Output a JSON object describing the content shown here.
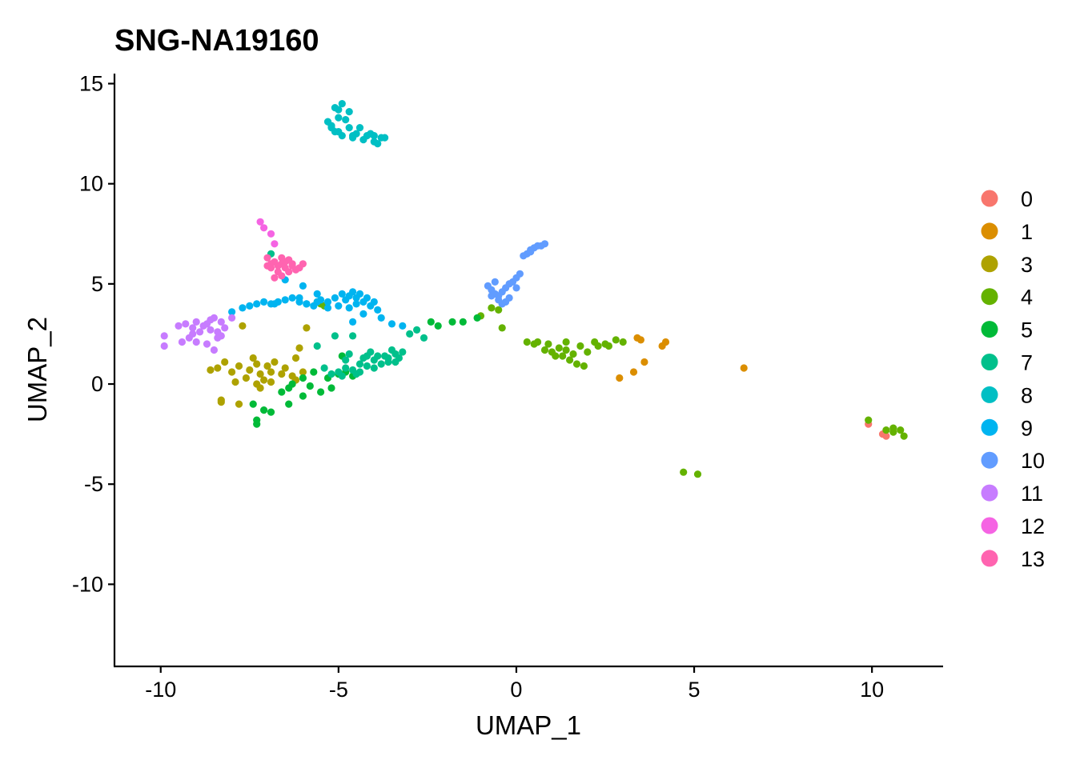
{
  "chart_data": {
    "type": "scatter",
    "title": "SNG-NA19160",
    "xlabel": "UMAP_1",
    "ylabel": "UMAP_2",
    "xlim": [
      -11.3,
      12.0
    ],
    "ylim": [
      -14.1,
      15.5
    ],
    "xticks": [
      -10,
      -5,
      0,
      5,
      10
    ],
    "yticks": [
      15,
      10,
      5,
      0,
      -5,
      -10
    ],
    "xtick_labels": [
      "-10",
      "-5",
      "0",
      "5",
      "10"
    ],
    "ytick_labels": [
      "15",
      "10",
      "5",
      "0",
      "-5",
      "-10"
    ],
    "grid": false,
    "legend_position": "right",
    "series": [
      {
        "name": "0",
        "color": "#F8766D",
        "points": [
          [
            9.9,
            -2.0
          ],
          [
            10.4,
            -2.6
          ],
          [
            10.3,
            -2.5
          ]
        ]
      },
      {
        "name": "1",
        "color": "#DB8E00",
        "points": [
          [
            3.4,
            2.3
          ],
          [
            3.5,
            2.2
          ],
          [
            4.2,
            2.1
          ],
          [
            4.1,
            1.9
          ],
          [
            3.6,
            1.1
          ],
          [
            3.3,
            0.6
          ],
          [
            2.9,
            0.3
          ],
          [
            6.4,
            0.8
          ]
        ]
      },
      {
        "name": "3",
        "color": "#AEA200",
        "points": [
          [
            -7.5,
            0.7
          ],
          [
            -7.3,
            1.0
          ],
          [
            -7.2,
            0.5
          ],
          [
            -7.0,
            0.9
          ],
          [
            -6.9,
            0.6
          ],
          [
            -7.6,
            0.3
          ],
          [
            -7.4,
            1.3
          ],
          [
            -7.1,
            0.2
          ],
          [
            -6.8,
            1.1
          ],
          [
            -6.6,
            0.5
          ],
          [
            -6.5,
            0.8
          ],
          [
            -6.3,
            0.4
          ],
          [
            -7.8,
            0.9
          ],
          [
            -8.0,
            0.6
          ],
          [
            -8.2,
            1.1
          ],
          [
            -8.4,
            0.8
          ],
          [
            -8.6,
            0.7
          ],
          [
            -8.3,
            -0.8
          ],
          [
            -8.3,
            -0.9
          ],
          [
            -7.8,
            -1.0
          ],
          [
            -7.2,
            -0.2
          ],
          [
            -6.9,
            0.1
          ],
          [
            -6.2,
            0.2
          ],
          [
            -6.0,
            0.6
          ],
          [
            -6.1,
            1.8
          ],
          [
            -6.2,
            1.3
          ],
          [
            -5.9,
            2.8
          ],
          [
            -7.7,
            2.9
          ],
          [
            -7.9,
            0.1
          ],
          [
            -7.3,
            0.0
          ]
        ]
      },
      {
        "name": "4",
        "color": "#64B200",
        "points": [
          [
            1.2,
            1.8
          ],
          [
            1.4,
            1.7
          ],
          [
            1.6,
            1.5
          ],
          [
            1.8,
            1.9
          ],
          [
            1.5,
            1.2
          ],
          [
            1.3,
            1.4
          ],
          [
            1.7,
            1.0
          ],
          [
            2.0,
            1.6
          ],
          [
            2.2,
            2.1
          ],
          [
            2.5,
            2.0
          ],
          [
            2.8,
            2.2
          ],
          [
            2.6,
            1.9
          ],
          [
            3.0,
            2.1
          ],
          [
            0.9,
            2.0
          ],
          [
            0.6,
            2.1
          ],
          [
            0.3,
            2.1
          ],
          [
            -0.5,
            3.7
          ],
          [
            -0.4,
            2.8
          ],
          [
            -0.7,
            3.8
          ],
          [
            -1.0,
            3.4
          ],
          [
            -5.6,
            4.1
          ],
          [
            -5.4,
            3.9
          ],
          [
            -5.5,
            4.0
          ],
          [
            9.9,
            -1.8
          ],
          [
            10.4,
            -2.3
          ],
          [
            10.6,
            -2.2
          ],
          [
            10.8,
            -2.3
          ],
          [
            10.9,
            -2.6
          ],
          [
            10.6,
            -2.4
          ],
          [
            4.7,
            -4.4
          ],
          [
            5.1,
            -4.5
          ],
          [
            1.0,
            1.6
          ],
          [
            1.9,
            0.9
          ],
          [
            2.3,
            1.9
          ],
          [
            1.1,
            1.4
          ],
          [
            1.4,
            2.1
          ],
          [
            0.5,
            2.0
          ],
          [
            0.8,
            1.7
          ]
        ]
      },
      {
        "name": "5",
        "color": "#00BA38",
        "points": [
          [
            -7.3,
            -1.8
          ],
          [
            -7.3,
            -2.0
          ],
          [
            -7.1,
            -1.3
          ],
          [
            -7.4,
            -1.0
          ],
          [
            -6.9,
            -1.4
          ],
          [
            -6.4,
            -1.0
          ],
          [
            -6.0,
            -0.6
          ],
          [
            -5.8,
            -0.1
          ],
          [
            -5.5,
            -0.4
          ],
          [
            -5.2,
            -0.2
          ],
          [
            -5.0,
            0.5
          ],
          [
            -4.8,
            0.6
          ],
          [
            -6.3,
            0.0
          ],
          [
            -6.0,
            0.3
          ],
          [
            -6.6,
            -0.4
          ],
          [
            -5.7,
            0.6
          ],
          [
            -4.9,
            1.4
          ],
          [
            -4.6,
            0.4
          ],
          [
            -1.5,
            3.1
          ],
          [
            -1.8,
            3.1
          ],
          [
            -2.2,
            2.9
          ],
          [
            -2.4,
            3.1
          ],
          [
            -1.1,
            3.3
          ],
          [
            -6.4,
            -0.2
          ],
          [
            -5.3,
            0.3
          ]
        ]
      },
      {
        "name": "7",
        "color": "#00C08B",
        "points": [
          [
            -5.0,
            0.6
          ],
          [
            -4.8,
            0.8
          ],
          [
            -4.6,
            0.7
          ],
          [
            -4.4,
            1.0
          ],
          [
            -4.2,
            0.9
          ],
          [
            -4.0,
            1.2
          ],
          [
            -3.8,
            1.0
          ],
          [
            -3.6,
            1.3
          ],
          [
            -3.4,
            1.5
          ],
          [
            -3.2,
            1.6
          ],
          [
            -3.5,
            1.7
          ],
          [
            -3.7,
            1.4
          ],
          [
            -4.1,
            1.6
          ],
          [
            -4.3,
            1.3
          ],
          [
            -4.7,
            1.5
          ],
          [
            -4.5,
            0.5
          ],
          [
            -4.9,
            0.4
          ],
          [
            -5.2,
            0.5
          ],
          [
            -5.4,
            0.8
          ],
          [
            -5.6,
            1.9
          ],
          [
            -5.1,
            2.4
          ],
          [
            -4.6,
            2.4
          ],
          [
            -3.0,
            2.5
          ],
          [
            -2.6,
            2.3
          ],
          [
            -2.8,
            2.7
          ],
          [
            -3.3,
            1.3
          ],
          [
            -3.9,
            1.4
          ],
          [
            -4.4,
            0.6
          ],
          [
            -4.2,
            1.4
          ],
          [
            -3.6,
            1.1
          ],
          [
            -6.9,
            6.5
          ],
          [
            -4.0,
            0.8
          ],
          [
            -4.8,
            1.2
          ],
          [
            -3.4,
            1.1
          ]
        ]
      },
      {
        "name": "8",
        "color": "#00BFC4",
        "points": [
          [
            -5.1,
            13.8
          ],
          [
            -4.9,
            14.0
          ],
          [
            -5.0,
            13.3
          ],
          [
            -5.2,
            12.9
          ],
          [
            -5.0,
            12.6
          ],
          [
            -4.8,
            13.2
          ],
          [
            -4.7,
            12.8
          ],
          [
            -4.5,
            12.5
          ],
          [
            -4.3,
            12.2
          ],
          [
            -4.1,
            12.5
          ],
          [
            -4.0,
            12.1
          ],
          [
            -3.8,
            12.3
          ],
          [
            -3.9,
            12.0
          ],
          [
            -4.2,
            12.4
          ],
          [
            -4.4,
            12.8
          ],
          [
            -4.6,
            12.3
          ],
          [
            -5.3,
            13.1
          ],
          [
            -5.1,
            12.6
          ],
          [
            -4.9,
            12.4
          ],
          [
            -4.7,
            13.6
          ],
          [
            -3.7,
            12.3
          ],
          [
            -4.0,
            12.4
          ],
          [
            -5.0,
            13.7
          ],
          [
            -4.6,
            12.4
          ],
          [
            -5.2,
            12.8
          ]
        ]
      },
      {
        "name": "9",
        "color": "#00B4F0",
        "points": [
          [
            -6.9,
            4.0
          ],
          [
            -7.1,
            4.1
          ],
          [
            -7.3,
            4.0
          ],
          [
            -7.5,
            3.9
          ],
          [
            -7.7,
            3.8
          ],
          [
            -8.0,
            3.6
          ],
          [
            -6.7,
            4.1
          ],
          [
            -6.5,
            4.2
          ],
          [
            -6.3,
            4.3
          ],
          [
            -6.1,
            4.1
          ],
          [
            -5.9,
            4.0
          ],
          [
            -5.7,
            3.9
          ],
          [
            -5.5,
            4.2
          ],
          [
            -5.3,
            4.1
          ],
          [
            -5.1,
            4.3
          ],
          [
            -4.9,
            4.5
          ],
          [
            -4.7,
            4.4
          ],
          [
            -4.5,
            4.3
          ],
          [
            -4.3,
            4.1
          ],
          [
            -4.1,
            3.9
          ],
          [
            -3.9,
            3.7
          ],
          [
            -3.8,
            3.3
          ],
          [
            -3.5,
            3.0
          ],
          [
            -3.2,
            2.9
          ],
          [
            -4.6,
            4.6
          ],
          [
            -4.8,
            4.2
          ],
          [
            -4.4,
            4.5
          ],
          [
            -4.2,
            4.3
          ],
          [
            -5.0,
            3.9
          ],
          [
            -5.6,
            4.1
          ],
          [
            -6.1,
            4.3
          ],
          [
            -5.9,
            4.0
          ],
          [
            -6.5,
            5.2
          ],
          [
            -6.0,
            4.9
          ],
          [
            -5.6,
            4.5
          ],
          [
            -4.6,
            3.1
          ],
          [
            -4.3,
            3.5
          ],
          [
            -4.0,
            4.1
          ],
          [
            -5.3,
            3.8
          ],
          [
            -4.7,
            3.8
          ],
          [
            -4.5,
            4.0
          ],
          [
            -6.8,
            4.0
          ]
        ]
      },
      {
        "name": "10",
        "color": "#619CFF",
        "points": [
          [
            0.8,
            7.0
          ],
          [
            0.7,
            6.9
          ],
          [
            0.5,
            6.8
          ],
          [
            0.4,
            6.7
          ],
          [
            0.3,
            6.5
          ],
          [
            0.2,
            6.4
          ],
          [
            0.4,
            6.6
          ],
          [
            0.6,
            6.9
          ],
          [
            0.1,
            5.5
          ],
          [
            0.0,
            5.3
          ],
          [
            -0.1,
            5.1
          ],
          [
            -0.2,
            5.0
          ],
          [
            -0.3,
            4.8
          ],
          [
            -0.4,
            4.6
          ],
          [
            -0.5,
            4.4
          ],
          [
            -0.6,
            4.5
          ],
          [
            -0.7,
            4.7
          ],
          [
            -0.8,
            4.9
          ],
          [
            -0.6,
            5.1
          ],
          [
            -0.5,
            4.2
          ],
          [
            -0.2,
            4.3
          ],
          [
            0.0,
            4.8
          ],
          [
            -0.3,
            4.1
          ],
          [
            -0.4,
            4.0
          ],
          [
            -0.7,
            4.4
          ]
        ]
      },
      {
        "name": "11",
        "color": "#C77CFF",
        "points": [
          [
            -9.9,
            2.4
          ],
          [
            -9.9,
            1.9
          ],
          [
            -9.5,
            2.9
          ],
          [
            -9.3,
            3.0
          ],
          [
            -9.1,
            2.8
          ],
          [
            -9.0,
            3.1
          ],
          [
            -8.8,
            2.9
          ],
          [
            -8.6,
            2.7
          ],
          [
            -8.4,
            2.6
          ],
          [
            -8.2,
            2.8
          ],
          [
            -8.0,
            3.3
          ],
          [
            -8.3,
            3.1
          ],
          [
            -8.5,
            3.3
          ],
          [
            -8.7,
            3.0
          ],
          [
            -8.9,
            2.6
          ],
          [
            -9.2,
            2.3
          ],
          [
            -9.4,
            2.1
          ],
          [
            -9.0,
            2.1
          ],
          [
            -8.7,
            2.0
          ],
          [
            -8.5,
            1.7
          ],
          [
            -8.4,
            2.3
          ],
          [
            -8.6,
            3.2
          ],
          [
            -8.3,
            2.4
          ],
          [
            -9.1,
            2.5
          ]
        ]
      },
      {
        "name": "12",
        "color": "#F564E3",
        "points": [
          [
            -7.2,
            8.1
          ],
          [
            -7.1,
            7.8
          ],
          [
            -6.9,
            7.5
          ],
          [
            -6.8,
            7.0
          ]
        ]
      },
      {
        "name": "13",
        "color": "#FF64B0",
        "points": [
          [
            -7.0,
            6.3
          ],
          [
            -6.8,
            6.1
          ],
          [
            -6.6,
            6.0
          ],
          [
            -6.4,
            6.2
          ],
          [
            -6.5,
            5.8
          ],
          [
            -6.7,
            5.6
          ],
          [
            -6.9,
            5.8
          ],
          [
            -6.3,
            5.9
          ],
          [
            -6.2,
            5.7
          ],
          [
            -6.6,
            5.4
          ],
          [
            -6.8,
            5.3
          ],
          [
            -6.5,
            6.1
          ],
          [
            -6.9,
            6.0
          ],
          [
            -6.4,
            5.6
          ],
          [
            -6.1,
            5.8
          ],
          [
            -6.7,
            5.9
          ],
          [
            -6.6,
            6.3
          ],
          [
            -6.3,
            6.0
          ],
          [
            -6.0,
            6.0
          ],
          [
            -7.0,
            5.9
          ]
        ]
      }
    ]
  }
}
